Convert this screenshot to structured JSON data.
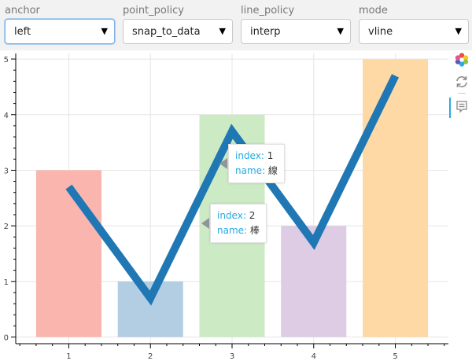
{
  "controls": [
    {
      "label": "anchor",
      "value": "left",
      "focused": true
    },
    {
      "label": "point_policy",
      "value": "snap_to_data",
      "focused": false
    },
    {
      "label": "line_policy",
      "value": "interp",
      "focused": false
    },
    {
      "label": "mode",
      "value": "vline",
      "focused": false
    }
  ],
  "dropdown_arrow": "▼",
  "toolbar": {
    "icons": [
      "bokeh-logo-icon",
      "reset-icon",
      "hover-tooltip-icon"
    ]
  },
  "tooltips": [
    {
      "index_key": "index:",
      "index_value": "1",
      "name_key": "name:",
      "name_value": "線"
    },
    {
      "index_key": "index:",
      "index_value": "2",
      "name_key": "name:",
      "name_value": "棒"
    }
  ],
  "chart_data": {
    "type": "bar",
    "categories": [
      1,
      2,
      3,
      4,
      5
    ],
    "bars": {
      "values": [
        3,
        1,
        4,
        2,
        5
      ],
      "colors": [
        "#f9b5ae",
        "#b3cde3",
        "#ccebc5",
        "#decbe4",
        "#fed9a6"
      ],
      "width": 0.8
    },
    "line": {
      "x": [
        1,
        2,
        3,
        4,
        5
      ],
      "y": [
        2.7,
        0.7,
        3.7,
        1.7,
        4.7
      ],
      "color": "#1f77b4"
    },
    "x_ticks": [
      1,
      2,
      3,
      4,
      5
    ],
    "y_ticks": [
      0,
      1,
      2,
      3,
      4,
      5
    ],
    "xlim": [
      0.35,
      5.65
    ],
    "ylim": [
      -0.12,
      5.1
    ],
    "grid": true
  }
}
